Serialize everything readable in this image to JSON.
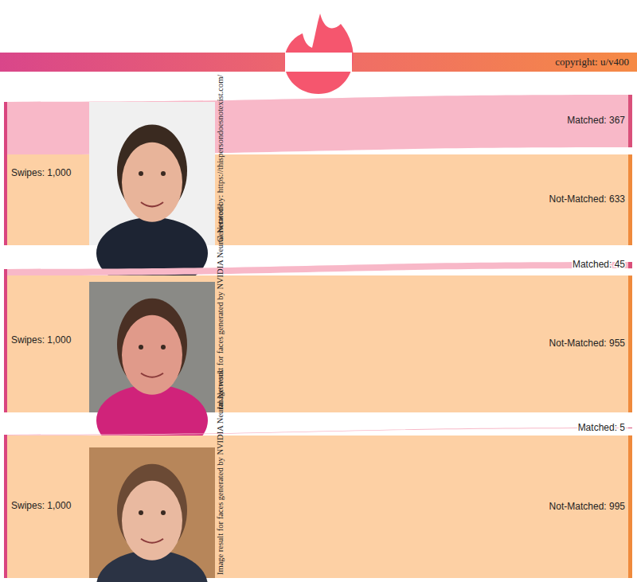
{
  "header": {
    "copyright": "copyright: u/v400"
  },
  "chart_data": [
    {
      "type": "sankey",
      "caption": "Generated by: https://thispersondoesnotexist.com/",
      "source": {
        "value": 1000,
        "label": "Swipes: 1,000"
      },
      "categories": [
        "Matched",
        "Not-Matched"
      ],
      "values": [
        367,
        633
      ],
      "value_labels": [
        "Matched: 367",
        "Not-Matched: 633"
      ],
      "colors": [
        "#f8b8c8",
        "#fdd0a4"
      ],
      "data_labels": true
    },
    {
      "type": "sankey",
      "caption": "Image result for faces generated by NVIDIA Neural Network",
      "source": {
        "value": 1000,
        "label": "Swipes: 1,000"
      },
      "categories": [
        "Matched",
        "Not-Matched"
      ],
      "values": [
        45,
        955
      ],
      "value_labels": [
        "Matched: 45",
        "Not-Matched: 955"
      ],
      "colors": [
        "#f8b8c8",
        "#fdd0a4"
      ],
      "data_labels": true
    },
    {
      "type": "sankey",
      "caption": "Image result for faces generated by NVIDIA Neural Network",
      "source": {
        "value": 1000,
        "label": "Swipes: 1,000"
      },
      "categories": [
        "Matched",
        "Not-Matched"
      ],
      "values": [
        5,
        995
      ],
      "value_labels": [
        "Matched: 5",
        "Not-Matched: 995"
      ],
      "colors": [
        "#f8b8c8",
        "#fdd0a4"
      ],
      "data_labels": true
    }
  ]
}
